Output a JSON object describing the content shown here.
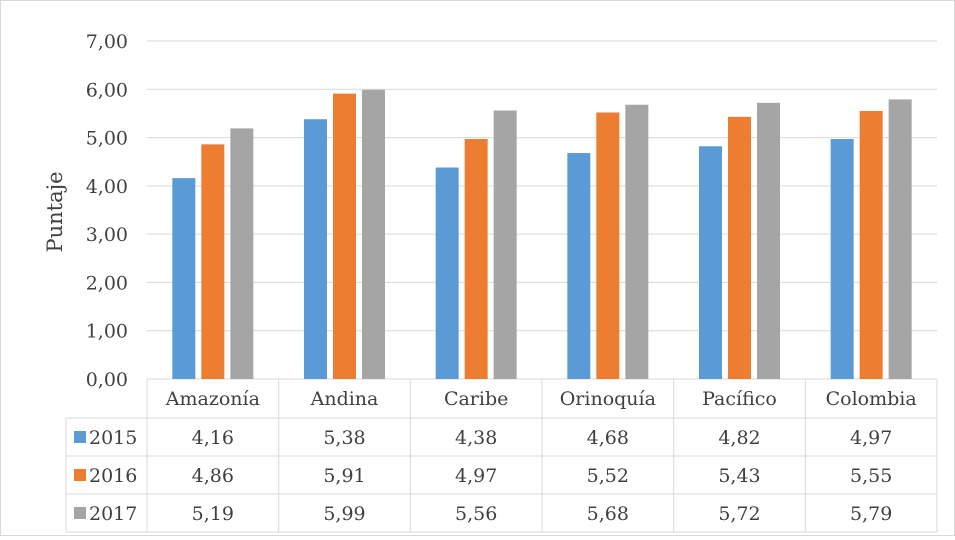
{
  "chart_data": {
    "type": "bar",
    "ylabel": "Puntaje",
    "ylim": [
      0,
      7
    ],
    "yticks": [
      "0,00",
      "1,00",
      "2,00",
      "3,00",
      "4,00",
      "5,00",
      "6,00",
      "7,00"
    ],
    "grid": true,
    "legend_placement": "data-table",
    "categories": [
      "Amazonía",
      "Andina",
      "Caribe",
      "Orinoquía",
      "Pacífico",
      "Colombia"
    ],
    "series": [
      {
        "name": "2015",
        "color": "#5b9bd5",
        "values": [
          4.16,
          5.38,
          4.38,
          4.68,
          4.82,
          4.97
        ],
        "labels": [
          "4,16",
          "5,38",
          "4,38",
          "4,68",
          "4,82",
          "4,97"
        ]
      },
      {
        "name": "2016",
        "color": "#ed7d31",
        "values": [
          4.86,
          5.91,
          4.97,
          5.52,
          5.43,
          5.55
        ],
        "labels": [
          "4,86",
          "5,91",
          "4,97",
          "5,52",
          "5,43",
          "5,55"
        ]
      },
      {
        "name": "2017",
        "color": "#a5a5a5",
        "values": [
          5.19,
          5.99,
          5.56,
          5.68,
          5.72,
          5.79
        ],
        "labels": [
          "5,19",
          "5,99",
          "5,56",
          "5,68",
          "5,72",
          "5,79"
        ]
      }
    ]
  }
}
